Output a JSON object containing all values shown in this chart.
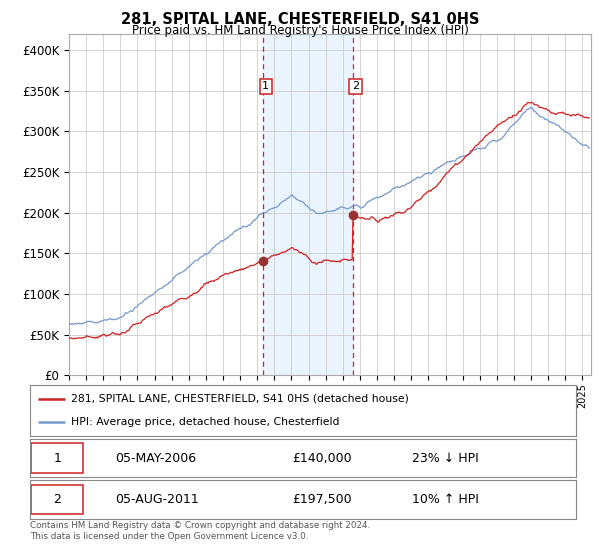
{
  "title": "281, SPITAL LANE, CHESTERFIELD, S41 0HS",
  "subtitle": "Price paid vs. HM Land Registry's House Price Index (HPI)",
  "bg_color": "#ffffff",
  "plot_bg_color": "#ffffff",
  "grid_color": "#cccccc",
  "hpi_line_color": "#7799cc",
  "price_line_color": "#cc2222",
  "marker_color": "#993333",
  "highlight_fill": "#ddeeff",
  "highlight_alpha": 0.6,
  "vline_color": "#cc2222",
  "annotation_box_color": "#cc2222",
  "ylim": [
    0,
    420000
  ],
  "ytick_vals": [
    0,
    50000,
    100000,
    150000,
    200000,
    250000,
    300000,
    350000,
    400000
  ],
  "ytick_labels": [
    "£0",
    "£50K",
    "£100K",
    "£150K",
    "£200K",
    "£250K",
    "£300K",
    "£350K",
    "£400K"
  ],
  "sale1_x": 2006.35,
  "sale1_y": 140000,
  "sale2_x": 2011.58,
  "sale2_y": 197500,
  "legend_line1": "281, SPITAL LANE, CHESTERFIELD, S41 0HS (detached house)",
  "legend_line2": "HPI: Average price, detached house, Chesterfield",
  "table_row1_num": "1",
  "table_row1_date": "05-MAY-2006",
  "table_row1_price": "£140,000",
  "table_row1_hpi": "23% ↓ HPI",
  "table_row2_num": "2",
  "table_row2_date": "05-AUG-2011",
  "table_row2_price": "£197,500",
  "table_row2_hpi": "10% ↑ HPI",
  "footer": "Contains HM Land Registry data © Crown copyright and database right 2024.\nThis data is licensed under the Open Government Licence v3.0.",
  "xmin": 1995,
  "xmax": 2025.5
}
